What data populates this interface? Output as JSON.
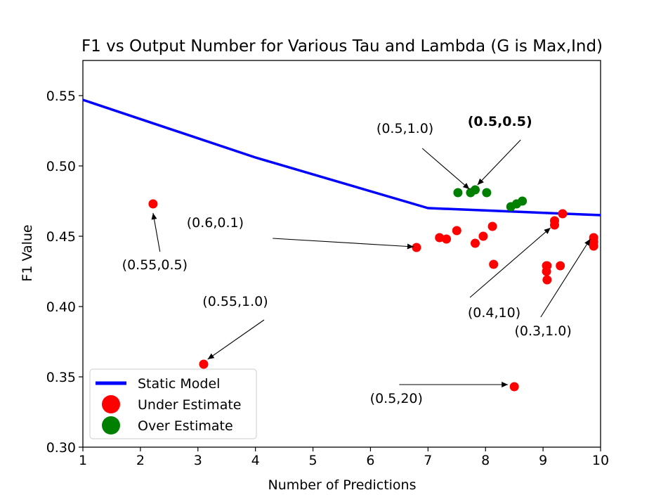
{
  "chart_data": {
    "type": "scatter",
    "title": "F1 vs Output Number for Various Tau and Lambda (G is Max,Ind)",
    "xlabel": "Number of Predictions",
    "ylabel": "F1 Value",
    "xlim": [
      1,
      10
    ],
    "ylim": [
      0.3,
      0.575
    ],
    "xticks": [
      "1",
      "2",
      "3",
      "4",
      "5",
      "6",
      "7",
      "8",
      "9",
      "10"
    ],
    "yticks": [
      "0.30",
      "0.35",
      "0.40",
      "0.45",
      "0.50",
      "0.55"
    ],
    "grid": false,
    "legend_position": "lower-left",
    "colors": {
      "line": "#0000ff",
      "under": "#ff0000",
      "over": "#008000"
    },
    "series": [
      {
        "name": "Static Model",
        "kind": "line",
        "x": [
          1,
          4,
          7,
          10
        ],
        "y": [
          0.547,
          0.506,
          0.47,
          0.465
        ]
      },
      {
        "name": "Under Estimate",
        "kind": "scatter",
        "x": [
          2.22,
          3.1,
          6.8,
          7.2,
          7.32,
          7.5,
          7.82,
          7.96,
          8.12,
          8.14,
          8.5,
          9.06,
          9.06,
          9.07,
          9.07,
          9.2,
          9.2,
          9.3,
          9.34,
          9.88,
          9.88,
          9.88
        ],
        "y": [
          0.473,
          0.359,
          0.442,
          0.449,
          0.448,
          0.454,
          0.445,
          0.45,
          0.457,
          0.43,
          0.343,
          0.429,
          0.425,
          0.419,
          0.429,
          0.461,
          0.458,
          0.429,
          0.466,
          0.449,
          0.446,
          0.443
        ]
      },
      {
        "name": "Over Estimate",
        "kind": "scatter",
        "x": [
          7.52,
          7.74,
          7.82,
          8.02,
          8.44,
          8.54,
          8.64
        ],
        "y": [
          0.481,
          0.481,
          0.483,
          0.481,
          0.471,
          0.473,
          0.475
        ]
      }
    ],
    "annotations": [
      {
        "text": "(0.55,0.5)",
        "bold": false,
        "text_x": 2.25,
        "text_y": 0.4265,
        "tip_x": 2.22,
        "tip_y": 0.4665,
        "tail_x": 2.34,
        "tail_y": 0.439
      },
      {
        "text": "(0.55,1.0)",
        "bold": false,
        "text_x": 3.65,
        "text_y": 0.4005,
        "tip_x": 3.17,
        "tip_y": 0.3625,
        "tail_x": 4.15,
        "tail_y": 0.3905
      },
      {
        "text": "(0.6,0.1)",
        "bold": false,
        "text_x": 3.3,
        "text_y": 0.4565,
        "tip_x": 6.75,
        "tip_y": 0.4425,
        "tail_x": 4.3,
        "tail_y": 0.4485
      },
      {
        "text": "(0.5,1.0)",
        "bold": false,
        "text_x": 6.6,
        "text_y": 0.5235,
        "tip_x": 7.72,
        "tip_y": 0.4835,
        "tail_x": 6.9,
        "tail_y": 0.5125
      },
      {
        "text": "(0.5,0.5)",
        "bold": true,
        "text_x": 8.25,
        "text_y": 0.5285,
        "tip_x": 7.86,
        "tip_y": 0.4865,
        "tail_x": 8.61,
        "tail_y": 0.5185
      },
      {
        "text": "(0.4,10)",
        "bold": false,
        "text_x": 8.15,
        "text_y": 0.3925,
        "tip_x": 9.13,
        "tip_y": 0.456,
        "tail_x": 7.73,
        "tail_y": 0.4065
      },
      {
        "text": "(0.3,1.0)",
        "bold": false,
        "text_x": 9.0,
        "text_y": 0.3795,
        "tip_x": 9.82,
        "tip_y": 0.448,
        "tail_x": 8.96,
        "tail_y": 0.3925
      },
      {
        "text": "(0.5,20)",
        "bold": false,
        "text_x": 6.45,
        "text_y": 0.3315,
        "tip_x": 8.39,
        "tip_y": 0.3445,
        "tail_x": 6.5,
        "tail_y": 0.3445
      }
    ]
  }
}
